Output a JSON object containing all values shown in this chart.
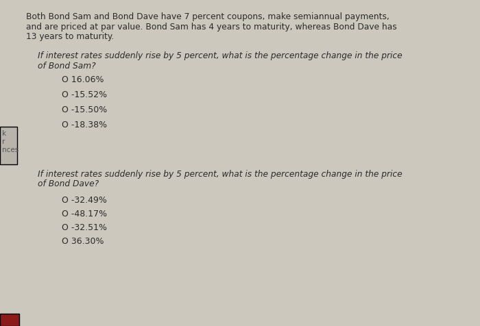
{
  "bg_color": "#ccc8be",
  "text_color": "#2a2a2a",
  "paragraph1_line1": "Both Bond Sam and Bond Dave have 7 percent coupons, make semiannual payments,",
  "paragraph1_line2": "and are priced at par value. Bond Sam has 4 years to maturity, whereas Bond Dave has",
  "paragraph1_line3": "13 years to maturity.",
  "question1_line1": "If interest rates suddenly rise by 5 percent, what is the percentage change in the price",
  "question1_line2": "of Bond Sam?",
  "q1_options": [
    "O 16.06%",
    "O -15.52%",
    "O -15.50%",
    "O -18.38%"
  ],
  "question2_line1": "If interest rates suddenly rise by 5 percent, what is the percentage change in the price",
  "question2_line2": "of Bond Dave?",
  "q2_options": [
    "O -32.49%",
    "O -48.17%",
    "O -32.51%",
    "O 36.30%"
  ],
  "side_label_k": "k",
  "side_label_r": "r",
  "side_label_nces": "nces",
  "bottom_strip_color": "#8B1A1A",
  "para_fontsize": 8.8,
  "q_fontsize": 8.8,
  "opt_fontsize": 9.0,
  "side_fontsize": 7.5
}
